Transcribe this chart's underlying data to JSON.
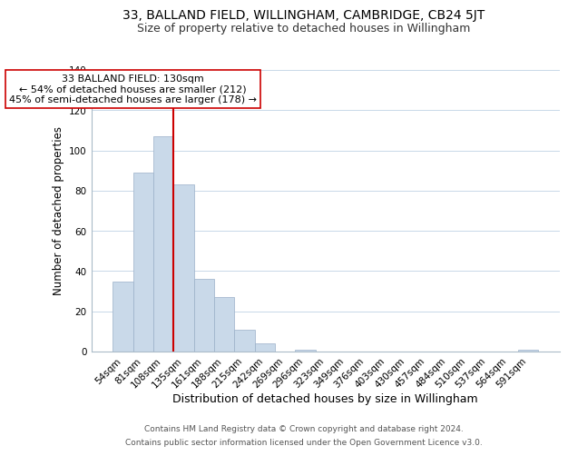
{
  "title": "33, BALLAND FIELD, WILLINGHAM, CAMBRIDGE, CB24 5JT",
  "subtitle": "Size of property relative to detached houses in Willingham",
  "xlabel": "Distribution of detached houses by size in Willingham",
  "ylabel": "Number of detached properties",
  "bar_labels": [
    "54sqm",
    "81sqm",
    "108sqm",
    "135sqm",
    "161sqm",
    "188sqm",
    "215sqm",
    "242sqm",
    "269sqm",
    "296sqm",
    "323sqm",
    "349sqm",
    "376sqm",
    "403sqm",
    "430sqm",
    "457sqm",
    "484sqm",
    "510sqm",
    "537sqm",
    "564sqm",
    "591sqm"
  ],
  "bar_values": [
    35,
    89,
    107,
    83,
    36,
    27,
    11,
    4,
    0,
    1,
    0,
    0,
    0,
    0,
    0,
    0,
    0,
    0,
    0,
    0,
    1
  ],
  "bar_color": "#c9d9e9",
  "bar_edge_color": "#9ab0c8",
  "vline_color": "#cc0000",
  "annotation_text": "33 BALLAND FIELD: 130sqm\n← 54% of detached houses are smaller (212)\n45% of semi-detached houses are larger (178) →",
  "annotation_box_color": "#ffffff",
  "annotation_box_edge": "#cc0000",
  "ylim": [
    0,
    140
  ],
  "yticks": [
    0,
    20,
    40,
    60,
    80,
    100,
    120,
    140
  ],
  "footer_line1": "Contains HM Land Registry data © Crown copyright and database right 2024.",
  "footer_line2": "Contains public sector information licensed under the Open Government Licence v3.0.",
  "title_fontsize": 10,
  "subtitle_fontsize": 9,
  "xlabel_fontsize": 9,
  "ylabel_fontsize": 8.5,
  "tick_fontsize": 7.5,
  "footer_fontsize": 6.5,
  "annotation_fontsize": 8
}
